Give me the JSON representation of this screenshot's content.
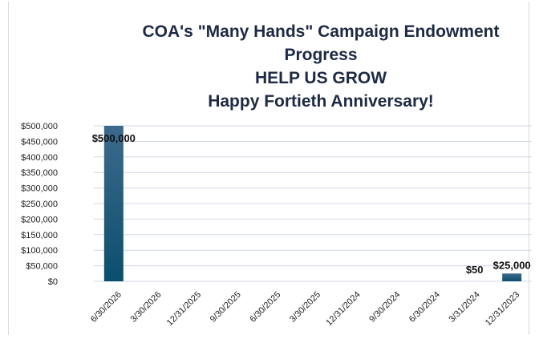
{
  "chart_data": {
    "type": "bar",
    "title_lines": [
      "COA's \"Many Hands\" Campaign Endowment",
      "Progress",
      "HELP US GROW",
      "Happy Fortieth Anniversary!"
    ],
    "categories": [
      "6/30/2026",
      "3/30/2026",
      "12/31/2025",
      "9/30/2025",
      "6/30/2025",
      "3/30/2025",
      "12/31/2024",
      "9/30/2024",
      "6/30/2024",
      "3/31/2024",
      "12/31/2023"
    ],
    "values": [
      500000,
      0,
      0,
      0,
      0,
      0,
      0,
      0,
      0,
      50,
      25000
    ],
    "data_labels": [
      "$500,000",
      "",
      "",
      "",
      "",
      "",
      "",
      "",
      "",
      "$50",
      "$25,000"
    ],
    "ylim": [
      0,
      500000
    ],
    "yticks": [
      0,
      50000,
      100000,
      150000,
      200000,
      250000,
      300000,
      350000,
      400000,
      450000,
      500000
    ],
    "ytick_labels": [
      "$0",
      "$50,000",
      "$100,000",
      "$150,000",
      "$200,000",
      "$250,000",
      "$300,000",
      "$350,000",
      "$400,000",
      "$450,000",
      "$500,000"
    ],
    "grid": true,
    "legend": "none",
    "bar_color_top": "#3d6a8c",
    "bar_color_bottom": "#0b4f6c"
  }
}
